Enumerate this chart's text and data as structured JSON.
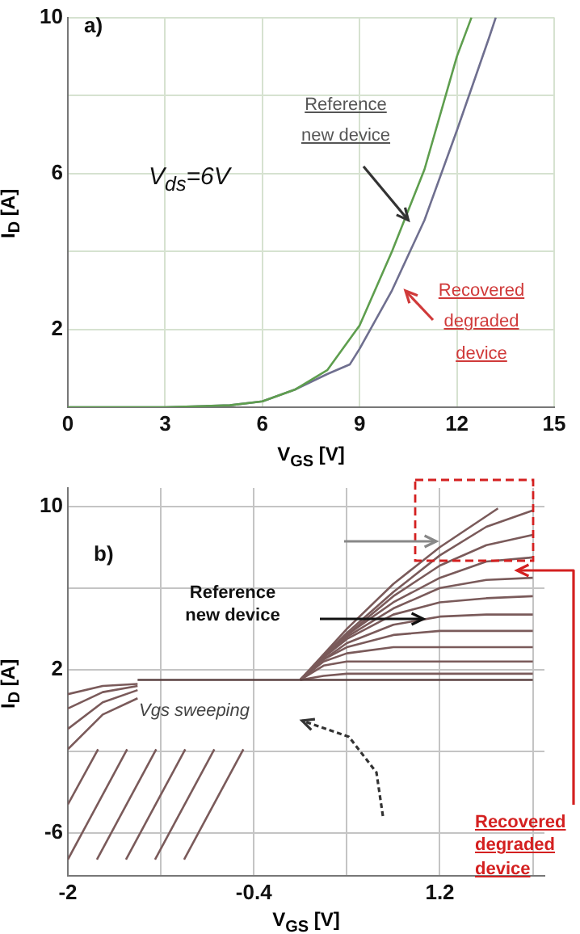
{
  "chart_data": [
    {
      "type": "line",
      "xlabel": "V$_{GS}$ [V]",
      "ylabel": "I$_{D}$ [A]",
      "xlim": [
        0,
        15
      ],
      "xticks": [
        0,
        3,
        6,
        9,
        12,
        15
      ],
      "ylim": [
        0,
        10
      ],
      "yticks": [
        {
          "value": 0,
          "label": null
        },
        2,
        {
          "value": 4,
          "label": null
        },
        6,
        {
          "value": 8,
          "label": null
        },
        10
      ],
      "grid": true,
      "series": [
        {
          "color": "#5e9e4e",
          "x": [
            0,
            3,
            5,
            6,
            7,
            8,
            9,
            10,
            11,
            12,
            12.45
          ],
          "values": [
            0,
            0,
            0.05,
            0.15,
            0.45,
            0.95,
            2.1,
            4.0,
            6.1,
            9.0,
            10
          ]
        },
        {
          "color": "#6f6f8f",
          "x": [
            0,
            3,
            5,
            6,
            7,
            8,
            8.7,
            9,
            10,
            11,
            12,
            13,
            13.2
          ],
          "values": [
            0,
            0,
            0.05,
            0.15,
            0.45,
            0.85,
            1.1,
            1.5,
            3.0,
            4.8,
            7.1,
            9.5,
            10
          ]
        }
      ],
      "annotations": [
        "a)",
        "V$_{ds}$=6V",
        {
          "text": "Reference new device",
          "x": 10.5,
          "y": 4.8
        },
        "Recovered degraded device"
      ]
    },
    {
      "type": "line",
      "xlabel": "V$_{GS}$ [V]",
      "ylabel": "I$_{D}$ [A]",
      "xlim": [
        -2,
        2.1
      ],
      "xticks": [
        -2,
        {
          "value": -1.2,
          "label": null
        },
        -0.4,
        {
          "value": 0.4,
          "label": null
        },
        1.2,
        {
          "value": 2,
          "label": null
        }
      ],
      "ylim": [
        -8.1,
        10.9
      ],
      "yticks": [
        -6,
        {
          "value": -2,
          "label": null
        },
        2,
        {
          "value": 6,
          "label": null
        },
        10
      ],
      "grid": true,
      "series": [
        {
          "color": "#5a4040",
          "x": [
            -1.4,
            0,
            2.0
          ],
          "values": [
            1.5,
            1.5,
            1.5
          ]
        },
        {
          "color": "#7a5a5a",
          "x": [
            0,
            0.4,
            0.8,
            1.2,
            1.7
          ],
          "values": [
            1.5,
            4.0,
            6.2,
            8.0,
            9.9
          ]
        },
        {
          "color": "#7a5a5a",
          "x": [
            0,
            0.2,
            0.4,
            0.8,
            1.2,
            1.6,
            2.0
          ],
          "values": [
            1.5,
            2.7,
            3.8,
            5.8,
            7.6,
            9.0,
            9.8
          ]
        },
        {
          "color": "#7a5a5a",
          "x": [
            0,
            0.2,
            0.4,
            0.8,
            1.2,
            1.6,
            2.0
          ],
          "values": [
            1.5,
            2.7,
            3.7,
            5.6,
            7.1,
            8.1,
            8.6
          ]
        },
        {
          "color": "#7a5a5a",
          "x": [
            0,
            0.2,
            0.4,
            0.8,
            1.2,
            1.6,
            2.0
          ],
          "values": [
            1.5,
            2.6,
            3.7,
            5.3,
            6.5,
            7.3,
            7.5
          ]
        },
        {
          "color": "#7a5a5a",
          "x": [
            0,
            0.2,
            0.4,
            0.8,
            1.2,
            1.6,
            2.0
          ],
          "values": [
            1.5,
            2.6,
            3.6,
            5.0,
            6.0,
            6.4,
            6.5
          ]
        },
        {
          "color": "#7a5a5a",
          "x": [
            0,
            0.2,
            0.4,
            0.8,
            1.2,
            1.6,
            2.0
          ],
          "values": [
            1.5,
            2.6,
            3.5,
            4.7,
            5.3,
            5.5,
            5.6
          ]
        },
        {
          "color": "#7a5a5a",
          "x": [
            0,
            0.2,
            0.4,
            0.8,
            1.2,
            1.6,
            2.0
          ],
          "values": [
            1.5,
            2.5,
            3.3,
            4.2,
            4.6,
            4.7,
            4.7
          ]
        },
        {
          "color": "#7a5a5a",
          "x": [
            0,
            0.2,
            0.4,
            0.8,
            1.2,
            1.6,
            2.0
          ],
          "values": [
            1.5,
            2.5,
            3.1,
            3.7,
            3.9,
            3.9,
            3.9
          ]
        },
        {
          "color": "#7a5a5a",
          "x": [
            0,
            0.2,
            0.4,
            0.8,
            1.2,
            1.6,
            2.0
          ],
          "values": [
            1.5,
            2.4,
            2.8,
            3.1,
            3.1,
            3.1,
            3.1
          ]
        },
        {
          "color": "#7a5a5a",
          "x": [
            0,
            0.2,
            0.4,
            0.8,
            1.2,
            1.6,
            2.0
          ],
          "values": [
            1.5,
            2.2,
            2.4,
            2.4,
            2.4,
            2.4,
            2.4
          ]
        },
        {
          "color": "#7a5a5a",
          "x": [
            0,
            0.2,
            0.4,
            0.8,
            1.2,
            1.6,
            2.0
          ],
          "values": [
            1.5,
            1.7,
            1.8,
            1.8,
            1.8,
            1.8,
            1.8
          ]
        },
        {
          "color": "#7a5a5a",
          "x": [
            -1.0,
            -0.49
          ],
          "values": [
            -7.3,
            -1.9
          ]
        },
        {
          "color": "#7a5a5a",
          "x": [
            -1.25,
            -0.74
          ],
          "values": [
            -7.3,
            -1.9
          ]
        },
        {
          "color": "#7a5a5a",
          "x": [
            -1.5,
            -0.99
          ],
          "values": [
            -7.3,
            -1.9
          ]
        },
        {
          "color": "#7a5a5a",
          "x": [
            -1.75,
            -1.24
          ],
          "values": [
            -7.3,
            -1.9
          ]
        },
        {
          "color": "#7a5a5a",
          "x": [
            -2.0,
            -1.49
          ],
          "values": [
            -7.3,
            -1.9
          ]
        },
        {
          "color": "#7a5a5a",
          "x": [
            -2.0,
            -1.74
          ],
          "values": [
            -4.6,
            -1.9
          ]
        },
        {
          "color": "#7a5a5a",
          "x": [
            -2.0,
            -1.7,
            -1.4
          ],
          "values": [
            -1.9,
            -0.2,
            0.6
          ]
        },
        {
          "color": "#7a5a5a",
          "x": [
            -2.0,
            -1.7,
            -1.4
          ],
          "values": [
            -0.9,
            0.4,
            1.0
          ]
        },
        {
          "color": "#7a5a5a",
          "x": [
            -2.0,
            -1.7,
            -1.4
          ],
          "values": [
            0.1,
            0.9,
            1.2
          ]
        },
        {
          "color": "#7a5a5a",
          "x": [
            -2.0,
            -1.7,
            -1.4
          ],
          "values": [
            0.8,
            1.2,
            1.3
          ]
        }
      ],
      "annotations": [
        "b)",
        "Reference new device",
        "Vgs sweeping",
        "Recovered degraded device"
      ]
    }
  ]
}
